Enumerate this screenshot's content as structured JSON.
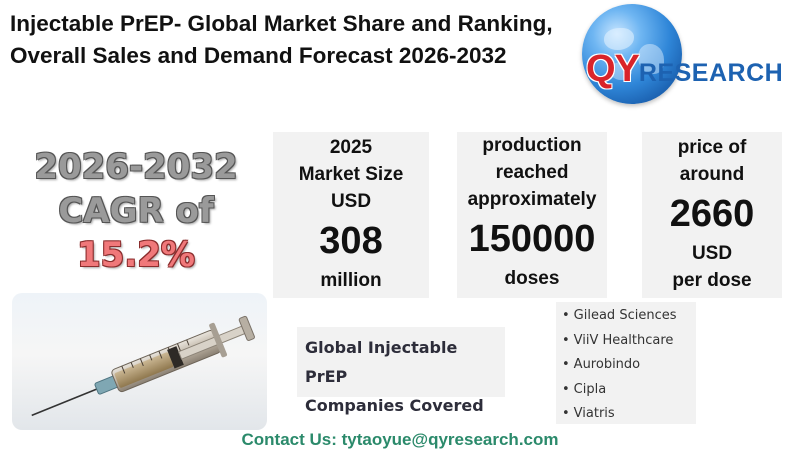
{
  "title": "Injectable PrEP- Global Market Share and Ranking, Overall Sales and Demand Forecast 2026-2032",
  "logo": {
    "prefix": "QY",
    "suffix": "RESEARCH"
  },
  "cagr": {
    "years": "2026-2032",
    "label": "CAGR of ",
    "value": "15.2%"
  },
  "cards": {
    "market": {
      "line1": "2025",
      "line2": "Market Size",
      "line3": "USD",
      "value": "308",
      "unit": "million"
    },
    "production": {
      "line1": "production",
      "line2": "reached",
      "line3": "approximately",
      "value": "150000",
      "unit": "doses"
    },
    "price": {
      "line1": "price of",
      "line2": "around",
      "value": "2660",
      "unit1": "USD",
      "unit2": "per dose"
    }
  },
  "covered": {
    "line1": "Global Injectable PrEP",
    "line2": "Companies Covered"
  },
  "companies": [
    "Gilead Sciences",
    "ViiV Healthcare",
    "Aurobindo",
    "Cipla",
    "Viatris"
  ],
  "contact": "Contact Us: tytaoyue@qyresearch.com",
  "icons": {
    "logo": "globe-icon",
    "image": "syringe-icon"
  },
  "colors": {
    "brand_red": "#d9242a",
    "brand_blue": "#1d62b1",
    "cagr_accent": "#f0787a",
    "contact": "#2b8a6b"
  }
}
